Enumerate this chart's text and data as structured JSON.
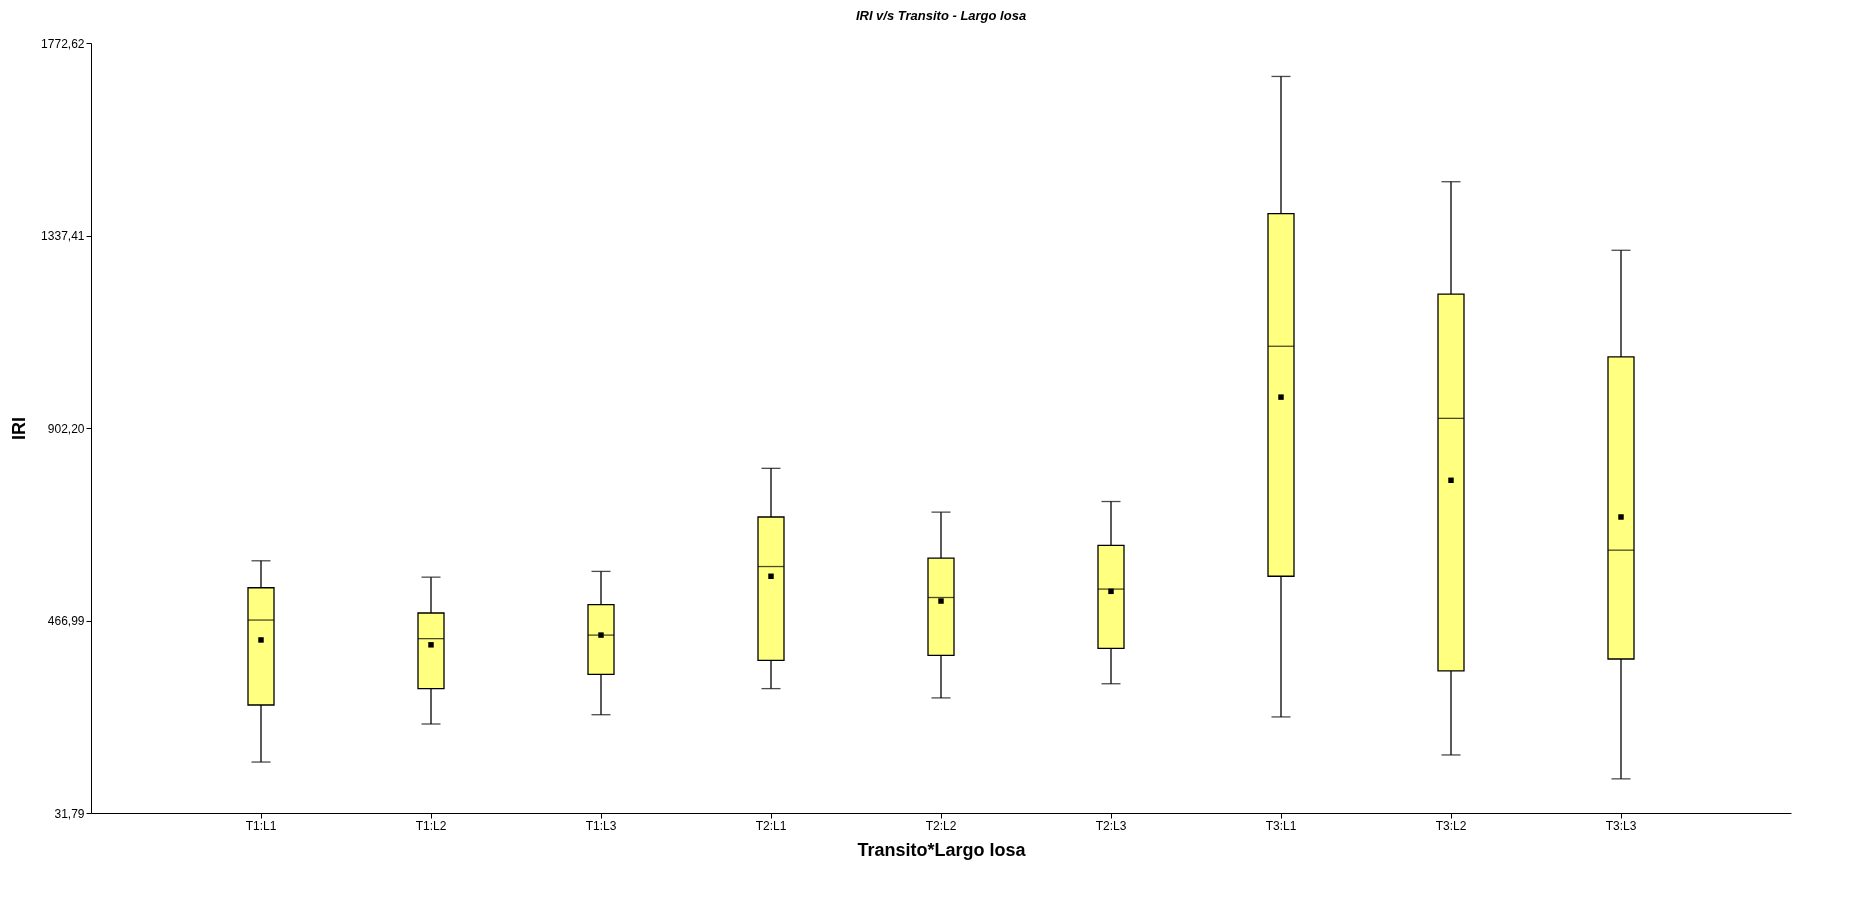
{
  "chart_data": {
    "type": "box",
    "title": "IRI v/s Transito - Largo losa",
    "xlabel": "Transito*Largo losa",
    "ylabel": "IRI",
    "categories": [
      "T1:L1",
      "T1:L2",
      "T1:L3",
      "T2:L1",
      "T2:L2",
      "T2:L3",
      "T3:L1",
      "T3:L2",
      "T3:L3"
    ],
    "series": [
      {
        "color": "#ffff80",
        "boxes": [
          {
            "low": 147,
            "q1": 276,
            "median": 468,
            "q3": 541,
            "high": 602,
            "mean": 423
          },
          {
            "low": 233,
            "q1": 313,
            "median": 426,
            "q3": 484,
            "high": 565,
            "mean": 412
          },
          {
            "low": 254,
            "q1": 345,
            "median": 434,
            "q3": 503,
            "high": 578,
            "mean": 434
          },
          {
            "low": 313,
            "q1": 377,
            "median": 589,
            "q3": 701,
            "high": 811,
            "mean": 567
          },
          {
            "low": 292,
            "q1": 388,
            "median": 519,
            "q3": 608,
            "high": 712,
            "mean": 511
          },
          {
            "low": 324,
            "q1": 404,
            "median": 538,
            "q3": 637,
            "high": 736,
            "mean": 533
          },
          {
            "low": 249,
            "q1": 567,
            "median": 1087,
            "q3": 1387,
            "high": 1697,
            "mean": 972
          },
          {
            "low": 163,
            "q1": 353,
            "median": 924,
            "q3": 1205,
            "high": 1459,
            "mean": 784
          },
          {
            "low": 109,
            "q1": 380,
            "median": 626,
            "q3": 1063,
            "high": 1304,
            "mean": 701
          }
        ]
      }
    ],
    "ylim": [
      31.79,
      1772.62
    ],
    "yticks": [
      {
        "value": 31.79,
        "label": "31,79"
      },
      {
        "value": 466.99,
        "label": "466,99"
      },
      {
        "value": 902.2,
        "label": "902,20"
      },
      {
        "value": 1337.41,
        "label": "1337,41"
      },
      {
        "value": 1772.62,
        "label": "1772,62"
      }
    ],
    "grid": false,
    "marker": "square"
  }
}
